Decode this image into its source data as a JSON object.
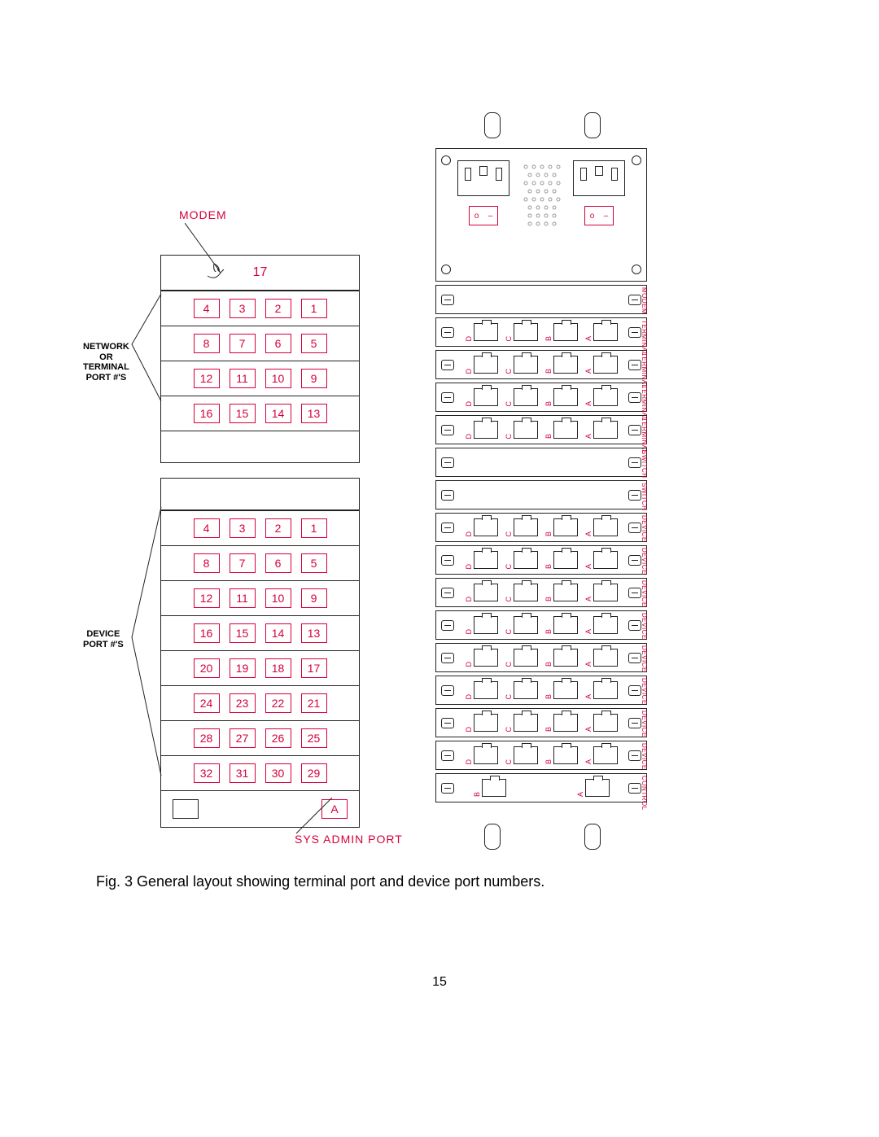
{
  "caption": "Fig. 3 General layout showing terminal port and device port numbers.",
  "page_number": "15",
  "labels": {
    "modem": "MODEM",
    "network_terminal": "NETWORK\nOR\nTERMINAL\nPORT #'S",
    "device": "DEVICE\nPORT #'S",
    "sys_admin": "SYS ADMIN PORT"
  },
  "left": {
    "top_number": "17",
    "terminal_rows": [
      [
        "4",
        "3",
        "2",
        "1"
      ],
      [
        "8",
        "7",
        "6",
        "5"
      ],
      [
        "12",
        "11",
        "10",
        "9"
      ],
      [
        "16",
        "15",
        "14",
        "13"
      ]
    ],
    "device_rows": [
      [
        "4",
        "3",
        "2",
        "1"
      ],
      [
        "8",
        "7",
        "6",
        "5"
      ],
      [
        "12",
        "11",
        "10",
        "9"
      ],
      [
        "16",
        "15",
        "14",
        "13"
      ],
      [
        "20",
        "19",
        "18",
        "17"
      ],
      [
        "24",
        "23",
        "22",
        "21"
      ],
      [
        "28",
        "27",
        "26",
        "25"
      ],
      [
        "32",
        "31",
        "30",
        "29"
      ]
    ],
    "last_letter": "A"
  },
  "right": {
    "port_letters": [
      "D",
      "C",
      "B",
      "A"
    ],
    "cards": [
      {
        "type": "MODEM",
        "ports": 0
      },
      {
        "type": "TERMINAL",
        "ports": 4
      },
      {
        "type": "TERMINAL",
        "ports": 4
      },
      {
        "type": "TERMINAL",
        "ports": 4
      },
      {
        "type": "TERMINAL",
        "ports": 4
      },
      {
        "type": "SWITCH",
        "ports": 0
      },
      {
        "type": "SWITCH",
        "ports": 0
      },
      {
        "type": "DEVICE",
        "ports": 4
      },
      {
        "type": "DEVICE",
        "ports": 4
      },
      {
        "type": "DEVICE",
        "ports": 4
      },
      {
        "type": "DEVICE",
        "ports": 4
      },
      {
        "type": "DEVICE",
        "ports": 4
      },
      {
        "type": "DEVICE",
        "ports": 4
      },
      {
        "type": "DEVICE",
        "ports": 4
      },
      {
        "type": "DEVICE",
        "ports": 4
      },
      {
        "type": "CONTROL",
        "ports": 2,
        "letters": [
          "B",
          "A"
        ]
      }
    ]
  },
  "colors": {
    "accent": "#d6003a",
    "line": "#222222",
    "bg": "#ffffff"
  }
}
